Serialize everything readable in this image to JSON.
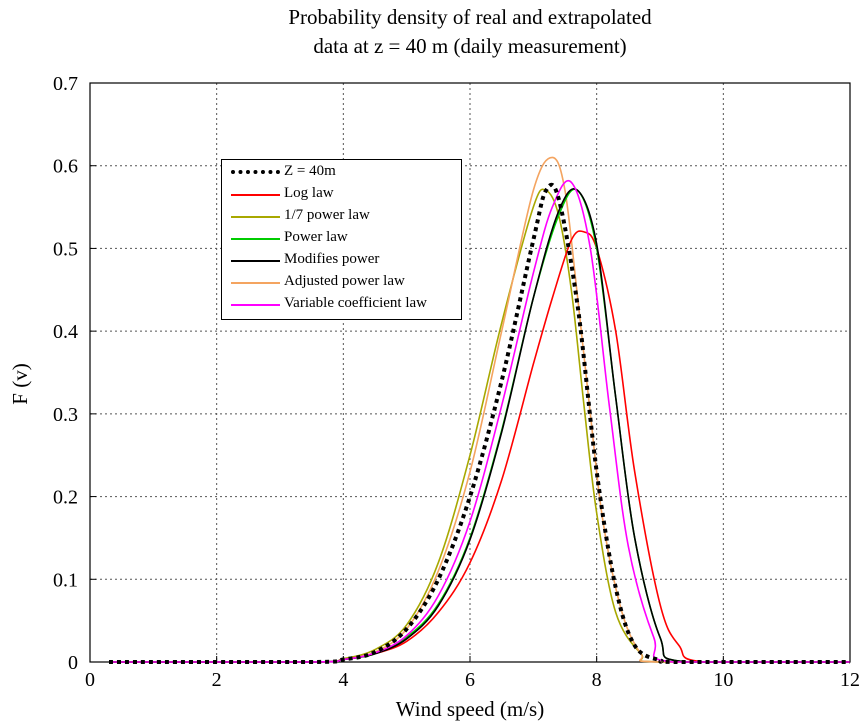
{
  "chart_data": {
    "type": "line",
    "title_line1": "Probability density of real and extrapolated",
    "title_line2": "data at z = 40 m (daily measurement)",
    "xlabel": "Wind speed (m/s)",
    "ylabel": "F (v)",
    "xlim": [
      0,
      12
    ],
    "ylim": [
      0,
      0.7
    ],
    "xticks": [
      0,
      2,
      4,
      6,
      8,
      10,
      12
    ],
    "yticks": [
      0,
      0.1,
      0.2,
      0.3,
      0.4,
      0.5,
      0.6,
      0.7
    ],
    "xtick_labels": [
      "0",
      "2",
      "4",
      "6",
      "8",
      "10",
      "12"
    ],
    "ytick_labels": [
      "0",
      "0.1",
      "0.2",
      "0.3",
      "0.4",
      "0.5",
      "0.6",
      "0.7"
    ],
    "grid": true,
    "legend_position": "upper-left-center",
    "series": [
      {
        "name": "Z = 40m",
        "color": "#000000",
        "style": "dotted",
        "x": [
          0.3,
          3.5,
          4.0,
          4.5,
          5.0,
          5.5,
          6.0,
          6.5,
          7.0,
          7.2,
          7.4,
          7.7,
          8.0,
          8.3,
          8.6,
          9.0,
          9.3,
          12
        ],
        "y": [
          0,
          0,
          0.003,
          0.012,
          0.04,
          0.1,
          0.2,
          0.34,
          0.51,
          0.57,
          0.56,
          0.43,
          0.23,
          0.09,
          0.02,
          0.002,
          0,
          0
        ]
      },
      {
        "name": "Log law",
        "color": "#ff0000",
        "style": "solid",
        "x": [
          0.3,
          3.5,
          4.0,
          4.5,
          5.0,
          5.5,
          6.0,
          6.5,
          7.0,
          7.3,
          7.6,
          7.8,
          8.0,
          8.3,
          8.6,
          9.0,
          9.3,
          9.7,
          12
        ],
        "y": [
          0,
          0,
          0.003,
          0.01,
          0.025,
          0.06,
          0.12,
          0.22,
          0.36,
          0.44,
          0.51,
          0.52,
          0.5,
          0.4,
          0.23,
          0.07,
          0.02,
          0,
          0
        ]
      },
      {
        "name": "1/7 power law",
        "color": "#a8a800",
        "style": "solid",
        "x": [
          0.3,
          3.5,
          4.0,
          4.5,
          5.0,
          5.5,
          6.0,
          6.5,
          7.0,
          7.2,
          7.4,
          7.6,
          7.8,
          8.0,
          8.3,
          8.7,
          9.0,
          12
        ],
        "y": [
          0,
          0,
          0.004,
          0.015,
          0.045,
          0.12,
          0.25,
          0.41,
          0.55,
          0.57,
          0.54,
          0.45,
          0.31,
          0.18,
          0.06,
          0.01,
          0,
          0
        ]
      },
      {
        "name": "Power law",
        "color": "#00cc00",
        "style": "solid",
        "x": [
          0.3,
          3.5,
          4.0,
          4.5,
          5.0,
          5.5,
          6.0,
          6.5,
          7.0,
          7.4,
          7.7,
          8.0,
          8.3,
          8.6,
          9.0,
          9.4,
          12
        ],
        "y": [
          0,
          0,
          0.003,
          0.01,
          0.03,
          0.07,
          0.15,
          0.28,
          0.44,
          0.54,
          0.57,
          0.5,
          0.32,
          0.15,
          0.03,
          0,
          0
        ]
      },
      {
        "name": "Modifies power",
        "color": "#000000",
        "style": "solid",
        "x": [
          0.3,
          3.5,
          4.0,
          4.5,
          5.0,
          5.5,
          6.0,
          6.5,
          7.0,
          7.4,
          7.7,
          8.0,
          8.3,
          8.6,
          9.0,
          9.4,
          12
        ],
        "y": [
          0,
          0,
          0.003,
          0.01,
          0.028,
          0.068,
          0.148,
          0.278,
          0.44,
          0.545,
          0.57,
          0.505,
          0.32,
          0.15,
          0.03,
          0,
          0
        ]
      },
      {
        "name": "Adjusted power law",
        "color": "#f4a460",
        "style": "solid",
        "x": [
          0.3,
          3.5,
          4.0,
          4.5,
          5.0,
          5.5,
          6.0,
          6.5,
          7.0,
          7.3,
          7.5,
          7.7,
          7.9,
          8.1,
          8.4,
          8.7,
          9.0,
          12
        ],
        "y": [
          0,
          0,
          0.003,
          0.012,
          0.04,
          0.11,
          0.23,
          0.4,
          0.57,
          0.61,
          0.57,
          0.44,
          0.3,
          0.17,
          0.06,
          0.01,
          0,
          0
        ]
      },
      {
        "name": "Variable coefficient law",
        "color": "#ff00ff",
        "style": "solid",
        "x": [
          0.3,
          3.5,
          4.0,
          4.5,
          5.0,
          5.5,
          6.0,
          6.5,
          7.0,
          7.3,
          7.6,
          7.9,
          8.2,
          8.5,
          8.9,
          9.2,
          12
        ],
        "y": [
          0,
          0,
          0.003,
          0.011,
          0.032,
          0.08,
          0.17,
          0.31,
          0.47,
          0.55,
          0.58,
          0.5,
          0.31,
          0.14,
          0.03,
          0,
          0
        ]
      }
    ]
  }
}
